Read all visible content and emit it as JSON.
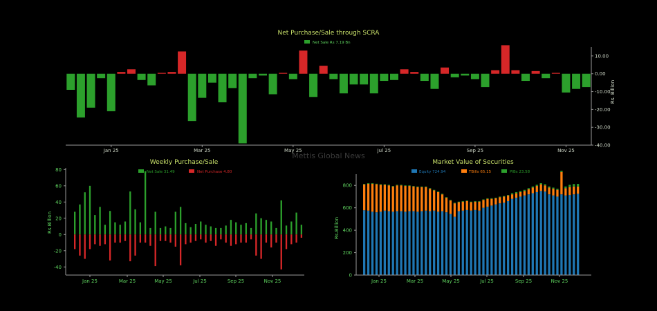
{
  "watermark": "Mettis Global News",
  "colors": {
    "green": "#2ca02c",
    "red": "#d62728",
    "blue": "#1f77b4",
    "orange": "#ff7f0e",
    "axis": "#9a9a9a",
    "text": "#cfd8c8",
    "green_text": "#5fd35f",
    "title": "#c8e06a"
  },
  "chart_data": [
    {
      "id": "top",
      "type": "bar",
      "title": "Net Purchase/Sale through SCRA",
      "legend": [
        {
          "label": "Net Sale Rs 7.19 Bn",
          "color": "green"
        }
      ],
      "ylabel": "Rs. Billion",
      "ylim": [
        -40,
        15
      ],
      "yticks": [
        "10.00",
        "0.00",
        "-10.00",
        "-20.00",
        "-30.00",
        "-40.00"
      ],
      "ytick_values": [
        10,
        0,
        -10,
        -20,
        -30,
        -40
      ],
      "xticks": [
        {
          "label": "Jan 25",
          "index": 4
        },
        {
          "label": "Mar 25",
          "index": 13
        },
        {
          "label": "May 25",
          "index": 22
        },
        {
          "label": "Jul 25",
          "index": 31
        },
        {
          "label": "Sep 25",
          "index": 40
        },
        {
          "label": "Nov 25",
          "index": 49
        }
      ],
      "values": [
        -9,
        -24.5,
        -19,
        -2.5,
        -21,
        1,
        2.5,
        -3.5,
        -6.5,
        0.5,
        1,
        12.5,
        -26.5,
        -13.5,
        -5,
        -16,
        -8,
        -39,
        -2.5,
        -1,
        -11.5,
        0.5,
        -3,
        13,
        -13,
        4.5,
        -3,
        -11,
        -6,
        -6,
        -11,
        -4,
        -3.5,
        2.5,
        1,
        -4,
        -8.5,
        3.5,
        -2,
        -1,
        -3,
        -7.5,
        2,
        16,
        2,
        -4,
        1.5,
        -2.5,
        0.5,
        -10.5,
        -8.5,
        -7.5
      ]
    },
    {
      "id": "weekly",
      "type": "bar",
      "title": "Weekly Purchase/Sale",
      "legend": [
        {
          "label": "Net Sale 31.49",
          "color": "green"
        },
        {
          "label": "Net Purchase 4.80",
          "color": "red"
        }
      ],
      "ylabel": "Rs.Billion",
      "ylim": [
        -50,
        82
      ],
      "yticks": [
        "80",
        "60",
        "40",
        "20",
        "0",
        "-20",
        "-40"
      ],
      "ytick_values": [
        80,
        60,
        40,
        20,
        0,
        -20,
        -40
      ],
      "xticks": [
        {
          "label": "Jan 25",
          "index": 4
        },
        {
          "label": "Mar 25",
          "index": 13
        },
        {
          "label": "May 25",
          "index": 22
        },
        {
          "label": "Jul 25",
          "index": 31
        },
        {
          "label": "Sep 25",
          "index": 40
        },
        {
          "label": "Nov 25",
          "index": 49
        }
      ],
      "sales": [
        28,
        37,
        52,
        60,
        24,
        34,
        12,
        29,
        15,
        12,
        16,
        53,
        31,
        15,
        78,
        8,
        28,
        8,
        10,
        8,
        28,
        34,
        14,
        9,
        13,
        16,
        12,
        10,
        8,
        8,
        11,
        18,
        15,
        12,
        14,
        8,
        26,
        20,
        18,
        16,
        8,
        42,
        11,
        16,
        27,
        12
      ],
      "purchases": [
        -18,
        -26,
        -30,
        -18,
        -12,
        -14,
        -12,
        -32,
        -10,
        -10,
        -8,
        -33,
        -26,
        -10,
        -10,
        -14,
        -39,
        -8,
        -8,
        -10,
        -15,
        -38,
        -12,
        -10,
        -8,
        -6,
        -10,
        -8,
        -14,
        -6,
        -10,
        -14,
        -12,
        -10,
        -10,
        -6,
        -26,
        -30,
        -10,
        -16,
        -10,
        -43,
        -18,
        -12,
        -10,
        -4
      ]
    },
    {
      "id": "mv",
      "type": "bar",
      "title": "Market Value of Securities",
      "legend": [
        {
          "label": "Equity 724.94",
          "color": "blue"
        },
        {
          "label": "TBills 65.15",
          "color": "orange"
        },
        {
          "label": "PIBs 23.58",
          "color": "green"
        }
      ],
      "ylabel": "Rs.Billion",
      "ylim": [
        0,
        900
      ],
      "yticks": [
        "800",
        "600",
        "400",
        "200",
        "0"
      ],
      "ytick_values": [
        800,
        600,
        400,
        200,
        0
      ],
      "xticks": [
        {
          "label": "Jan 25",
          "index": 4
        },
        {
          "label": "Mar 25",
          "index": 13
        },
        {
          "label": "May 25",
          "index": 22
        },
        {
          "label": "Jul 25",
          "index": 31
        },
        {
          "label": "Sep 25",
          "index": 40
        },
        {
          "label": "Nov 25",
          "index": 49
        }
      ],
      "equity": [
        578,
        575,
        565,
        560,
        565,
        575,
        570,
        565,
        570,
        570,
        565,
        570,
        570,
        565,
        570,
        575,
        570,
        575,
        565,
        570,
        560,
        545,
        520,
        570,
        575,
        580,
        575,
        580,
        575,
        600,
        610,
        620,
        630,
        640,
        645,
        660,
        680,
        690,
        700,
        710,
        720,
        730,
        740,
        750,
        745,
        720,
        710,
        700,
        720,
        710,
        715,
        720,
        725
      ],
      "tbills": [
        230,
        240,
        250,
        250,
        240,
        230,
        230,
        225,
        230,
        230,
        230,
        225,
        220,
        220,
        215,
        210,
        200,
        180,
        175,
        150,
        130,
        120,
        120,
        80,
        80,
        80,
        75,
        75,
        80,
        70,
        70,
        60,
        55,
        55,
        55,
        50,
        40,
        40,
        40,
        40,
        45,
        50,
        55,
        60,
        55,
        60,
        60,
        60,
        200,
        65,
        70,
        70,
        65
      ],
      "pibs": [
        5,
        5,
        5,
        5,
        5,
        5,
        5,
        5,
        5,
        5,
        5,
        5,
        5,
        5,
        5,
        5,
        5,
        5,
        5,
        5,
        5,
        5,
        5,
        5,
        5,
        5,
        5,
        5,
        5,
        5,
        5,
        5,
        5,
        5,
        5,
        5,
        10,
        10,
        10,
        10,
        10,
        10,
        10,
        10,
        10,
        10,
        10,
        10,
        10,
        15,
        20,
        22,
        23
      ]
    }
  ]
}
